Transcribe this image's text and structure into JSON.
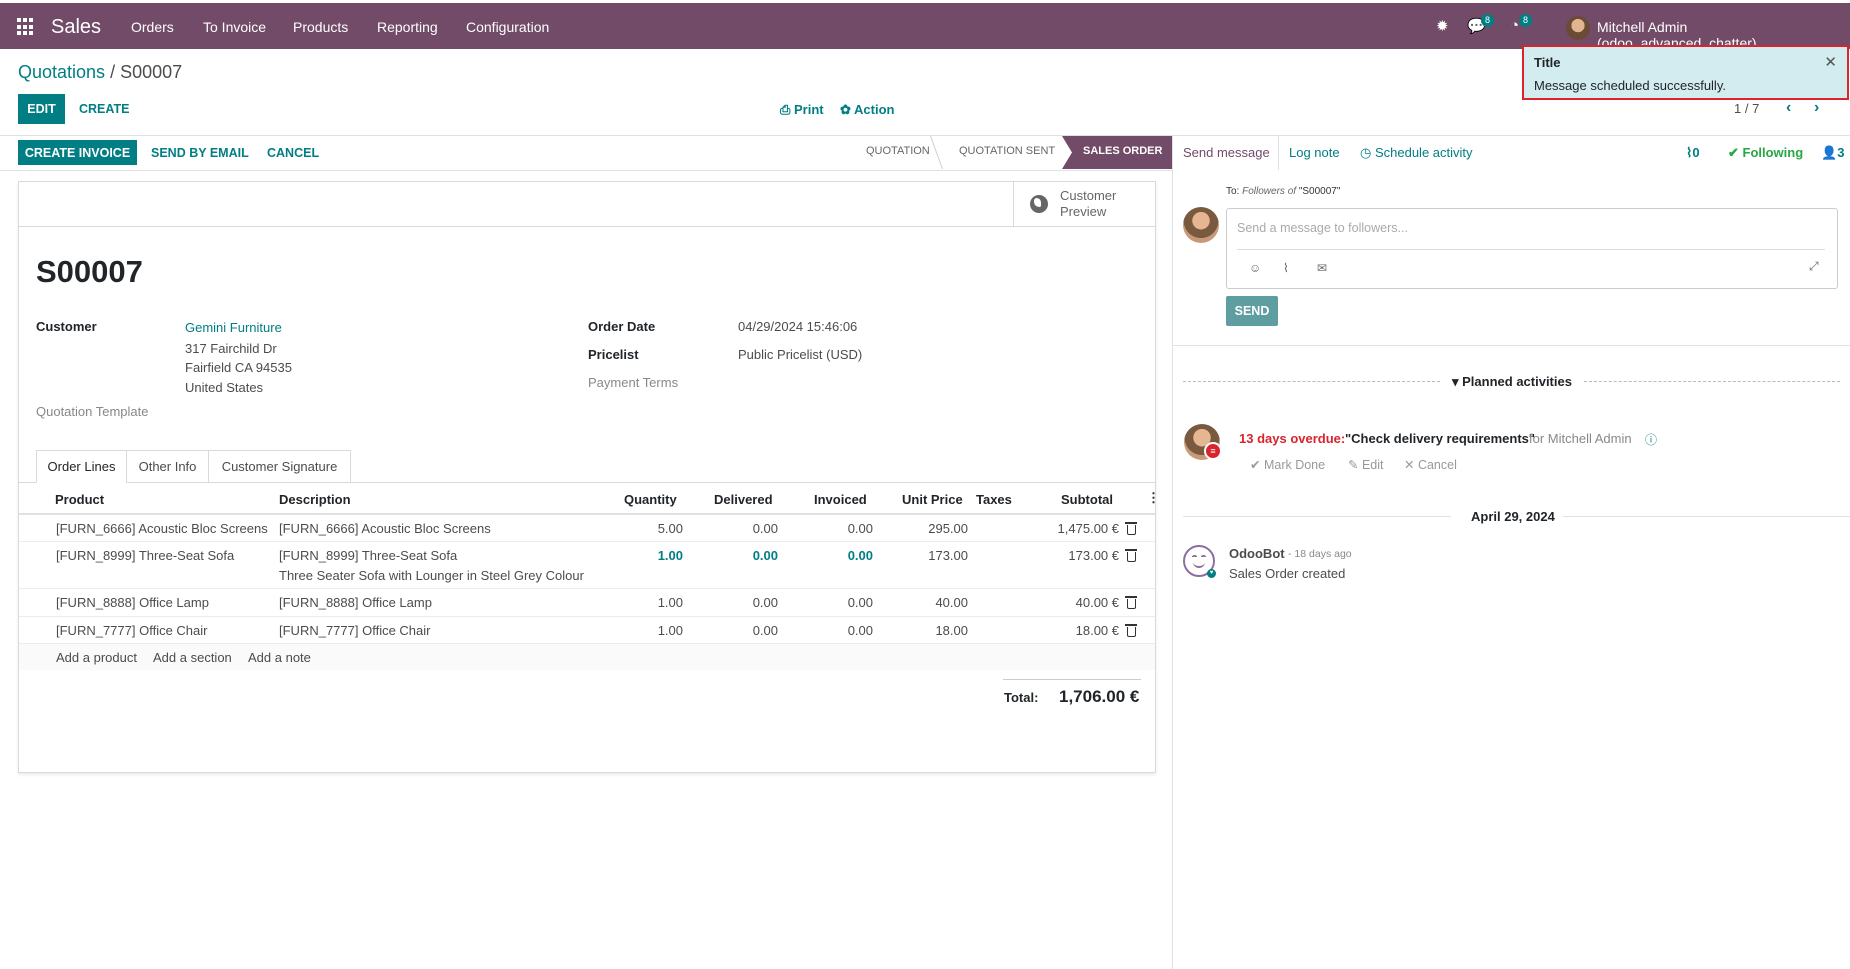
{
  "nav": {
    "brand": "Sales",
    "menu": [
      "Orders",
      "To Invoice",
      "Products",
      "Reporting",
      "Configuration"
    ],
    "messages_badge": "8",
    "activities_badge": "8",
    "user": "Mitchell Admin (odoo_advanced_chatter)"
  },
  "breadcrumb": {
    "parent": "Quotations",
    "separator": "/",
    "current": "S00007"
  },
  "toolbar": {
    "edit": "EDIT",
    "create": "CREATE",
    "print": "Print",
    "action": "Action",
    "pager": "1 / 7"
  },
  "statusbar": {
    "buttons": [
      "CREATE INVOICE",
      "SEND BY EMAIL",
      "CANCEL"
    ],
    "stages": [
      "QUOTATION",
      "QUOTATION SENT",
      "SALES ORDER"
    ],
    "active_stage": "SALES ORDER"
  },
  "form": {
    "customer_preview": "Customer Preview",
    "title": "S00007",
    "customer_label": "Customer",
    "customer_name": "Gemini Furniture",
    "address": [
      "317 Fairchild Dr",
      "Fairfield CA 94535",
      "United States"
    ],
    "quotation_template_label": "Quotation Template",
    "order_date_label": "Order Date",
    "order_date": "04/29/2024 15:46:06",
    "pricelist_label": "Pricelist",
    "pricelist": "Public Pricelist (USD)",
    "payment_terms_label": "Payment Terms",
    "tabs": [
      "Order Lines",
      "Other Info",
      "Customer Signature"
    ],
    "columns": [
      "Product",
      "Description",
      "Quantity",
      "Delivered",
      "Invoiced",
      "Unit Price",
      "Taxes",
      "Subtotal"
    ],
    "lines": [
      {
        "product": "[FURN_6666] Acoustic Bloc Screens",
        "description": "[FURN_6666] Acoustic Bloc Screens",
        "description2": "",
        "qty": "5.00",
        "delivered": "0.00",
        "invoiced": "0.00",
        "price": "295.00",
        "taxes": "",
        "subtotal": "1,475.00 €"
      },
      {
        "product": "[FURN_8999] Three-Seat Sofa",
        "description": "[FURN_8999] Three-Seat Sofa",
        "description2": "Three Seater Sofa with Lounger in Steel Grey Colour",
        "qty": "1.00",
        "delivered": "0.00",
        "invoiced": "0.00",
        "price": "173.00",
        "taxes": "",
        "subtotal": "173.00 €"
      },
      {
        "product": "[FURN_8888] Office Lamp",
        "description": "[FURN_8888] Office Lamp",
        "description2": "",
        "qty": "1.00",
        "delivered": "0.00",
        "invoiced": "0.00",
        "price": "40.00",
        "taxes": "",
        "subtotal": "40.00 €"
      },
      {
        "product": "[FURN_7777] Office Chair",
        "description": "[FURN_7777] Office Chair",
        "description2": "",
        "qty": "1.00",
        "delivered": "0.00",
        "invoiced": "0.00",
        "price": "18.00",
        "taxes": "",
        "subtotal": "18.00 €"
      }
    ],
    "add_product": "Add a product",
    "add_section": "Add a section",
    "add_note": "Add a note",
    "total_label": "Total:",
    "total_value": "1,706.00 €"
  },
  "chatter": {
    "send_message": "Send message",
    "log_note": "Log note",
    "schedule_activity": "Schedule activity",
    "attachments_count": "0",
    "following": "Following",
    "followers_count": "3",
    "to_prefix": "To:",
    "to_followers": "Followers of",
    "to_record": "\"S00007\"",
    "placeholder": "Send a message to followers...",
    "send": "SEND",
    "planned_activities": "Planned activities",
    "activity_overdue": "13 days overdue:",
    "activity_title": "\"Check delivery requirements\"",
    "activity_for": "for Mitchell Admin",
    "mark_done": "Mark Done",
    "edit": "Edit",
    "cancel": "Cancel",
    "date_separator": "April 29, 2024",
    "message_author": "OdooBot",
    "message_time": "- 18 days ago",
    "message_body": "Sales Order created"
  },
  "notification": {
    "title": "Title",
    "message": "Message scheduled successfully."
  },
  "colors": {
    "primary": "#714b67",
    "accent": "#017e84",
    "overdue": "#d9232d",
    "toast_bg": "#d3ecef"
  }
}
